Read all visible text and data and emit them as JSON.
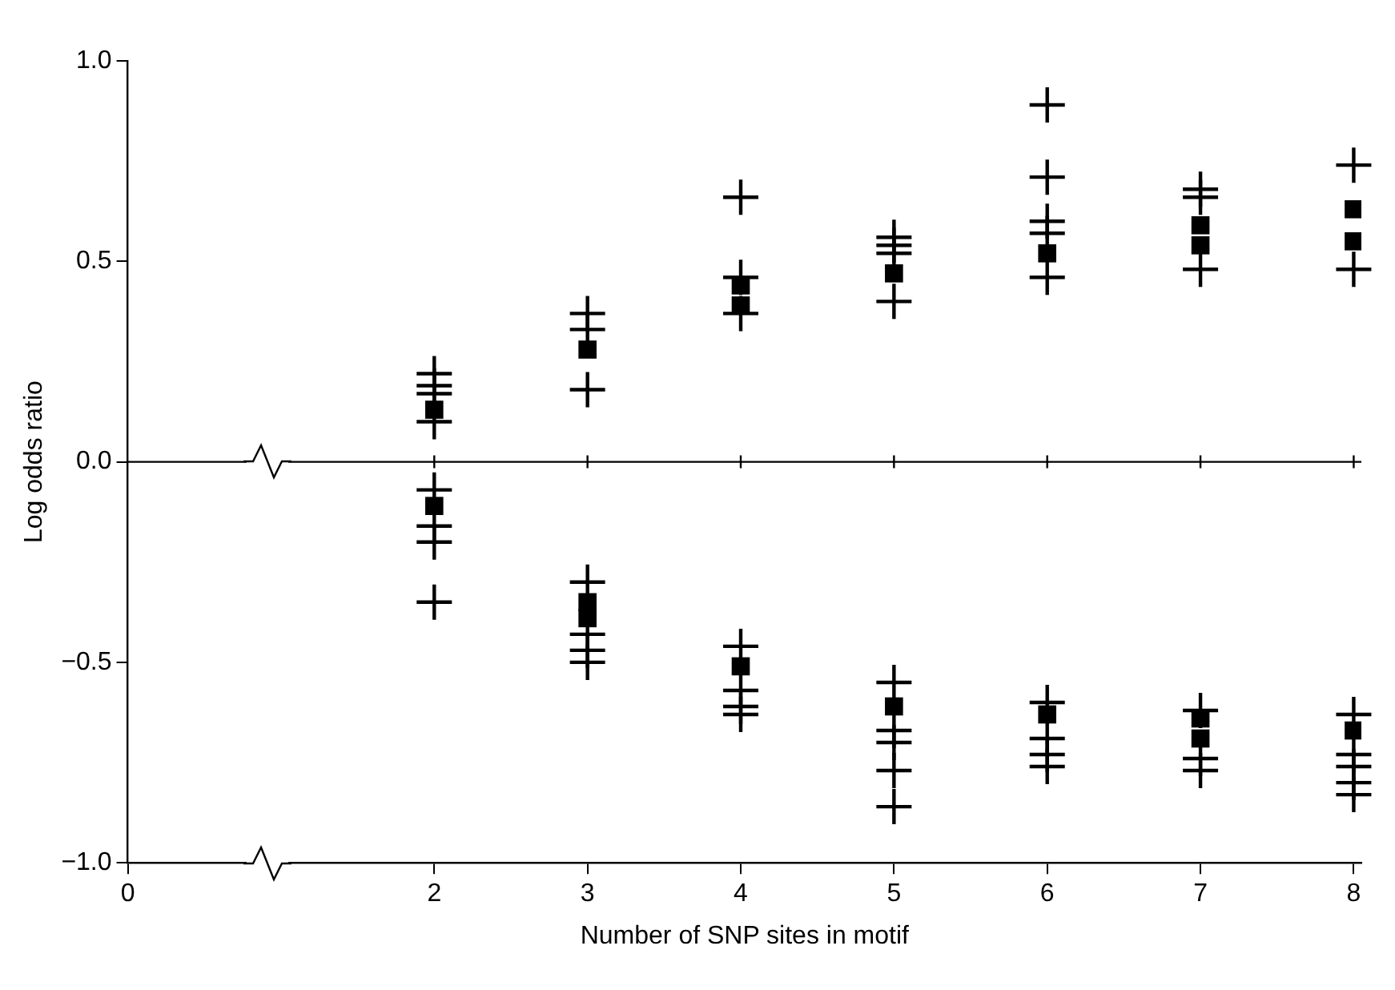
{
  "chart_data": {
    "type": "scatter",
    "xlabel": "Number of SNP sites in motif",
    "ylabel": "Log odds ratio",
    "xlim": [
      0,
      8.05
    ],
    "xticks": [
      0,
      2,
      3,
      4,
      5,
      6,
      7,
      8
    ],
    "ylim": [
      -1,
      1
    ],
    "yticks": [
      {
        "value": -1,
        "label": "−1.0"
      },
      {
        "value": -0.5,
        "label": "−0.5"
      },
      {
        "value": 0,
        "label": "0.0"
      },
      {
        "value": 0.5,
        "label": "0.5"
      },
      {
        "value": 1,
        "label": "1.0"
      }
    ],
    "grid": false,
    "legend": false,
    "ref_lines": [
      {
        "axis": "y",
        "value": 0,
        "color": "#000000"
      }
    ],
    "series": [
      {
        "color": "#000000",
        "marker": "square",
        "x": [
          2,
          2,
          3,
          3,
          3,
          4,
          4,
          4,
          5,
          5,
          6,
          6,
          7,
          7,
          7,
          7,
          8,
          8,
          8
        ],
        "values": [
          0.13,
          -0.11,
          0.28,
          -0.35,
          -0.39,
          0.44,
          0.39,
          -0.51,
          0.47,
          -0.61,
          0.52,
          -0.63,
          0.59,
          0.54,
          -0.64,
          -0.69,
          0.63,
          0.55,
          -0.67
        ]
      },
      {
        "color": "#000000",
        "marker": "cross",
        "x": [
          2,
          2,
          2,
          2,
          2,
          2,
          2,
          2,
          3,
          3,
          3,
          3,
          3,
          3,
          3,
          4,
          4,
          4,
          4,
          4,
          4,
          4,
          5,
          5,
          5,
          5,
          5,
          5,
          5,
          5,
          5,
          6,
          6,
          6,
          6,
          6,
          6,
          6,
          6,
          6,
          7,
          7,
          7,
          7,
          7,
          7,
          8,
          8,
          8,
          8,
          8,
          8,
          8
        ],
        "values": [
          0.22,
          0.19,
          0.17,
          0.1,
          -0.07,
          -0.16,
          -0.2,
          -0.35,
          0.37,
          0.33,
          0.18,
          -0.3,
          -0.43,
          -0.47,
          -0.5,
          0.66,
          0.46,
          0.37,
          -0.46,
          -0.57,
          -0.61,
          -0.63,
          0.56,
          0.54,
          0.52,
          0.4,
          -0.55,
          -0.67,
          -0.7,
          -0.77,
          -0.86,
          0.89,
          0.71,
          0.6,
          0.57,
          0.46,
          -0.6,
          -0.69,
          -0.73,
          -0.76,
          0.68,
          0.66,
          0.48,
          -0.62,
          -0.74,
          -0.77,
          0.74,
          0.48,
          -0.63,
          -0.73,
          -0.76,
          -0.8,
          -0.83
        ]
      }
    ]
  }
}
